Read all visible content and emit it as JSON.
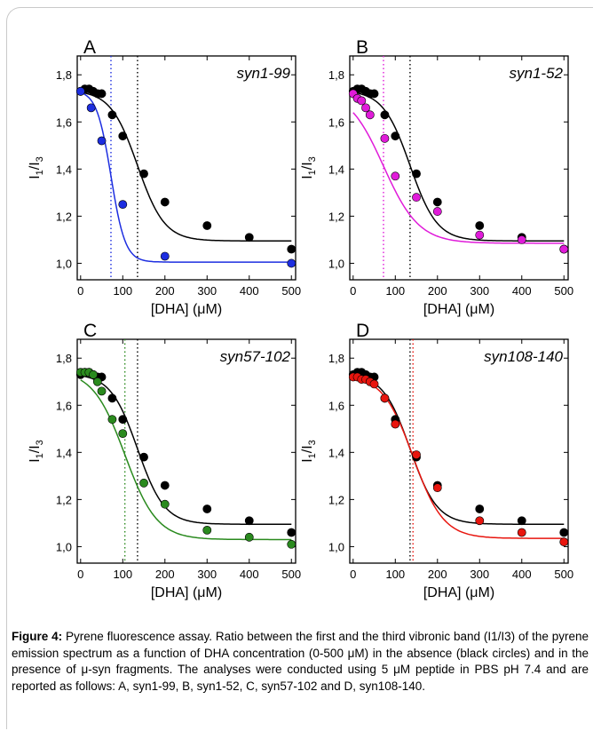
{
  "chart_data": [
    {
      "type": "scatter",
      "panel_label": "A",
      "annotation": "syn1-99",
      "xlabel": "[DHA] (μM)",
      "ylabel": "I1/I3",
      "xlim": [
        -8,
        510
      ],
      "ylim": [
        0.93,
        1.88
      ],
      "xticks": [
        "0",
        "100",
        "200",
        "300",
        "400",
        "500"
      ],
      "yticks": [
        "1,0",
        "1,2",
        "1,4",
        "1,6",
        "1,8"
      ],
      "series": [
        {
          "color": "#000000",
          "x": [
            0,
            10,
            20,
            30,
            40,
            50,
            75,
            100,
            150,
            200,
            300,
            400,
            500
          ],
          "y": [
            1.73,
            1.74,
            1.74,
            1.73,
            1.72,
            1.72,
            1.63,
            1.54,
            1.38,
            1.26,
            1.16,
            1.11,
            1.06
          ],
          "fit_top": 1.735,
          "fit_bottom": 1.095,
          "fit_mid": 135,
          "fit_width": 32,
          "vline": 135
        },
        {
          "color": "#1d2ee0",
          "x": [
            0,
            25,
            50,
            100,
            200,
            500
          ],
          "y": [
            1.73,
            1.66,
            1.52,
            1.25,
            1.03,
            1.0
          ],
          "fit_top": 1.735,
          "fit_bottom": 1.005,
          "fit_mid": 72,
          "fit_width": 17,
          "vline": 72
        }
      ]
    },
    {
      "type": "scatter",
      "panel_label": "B",
      "annotation": "syn1-52",
      "xlabel": "[DHA] (μM)",
      "ylabel": "I1/I3",
      "xlim": [
        -8,
        510
      ],
      "ylim": [
        0.93,
        1.88
      ],
      "xticks": [
        "0",
        "100",
        "200",
        "300",
        "400",
        "500"
      ],
      "yticks": [
        "1,0",
        "1,2",
        "1,4",
        "1,6",
        "1,8"
      ],
      "series": [
        {
          "color": "#000000",
          "x": [
            0,
            10,
            20,
            30,
            40,
            50,
            75,
            100,
            150,
            200,
            300,
            400,
            500
          ],
          "y": [
            1.73,
            1.74,
            1.74,
            1.73,
            1.72,
            1.72,
            1.63,
            1.54,
            1.38,
            1.26,
            1.16,
            1.11,
            1.06
          ],
          "fit_top": 1.735,
          "fit_bottom": 1.095,
          "fit_mid": 135,
          "fit_width": 32,
          "vline": 135
        },
        {
          "color": "#e01bd9",
          "x": [
            0,
            10,
            20,
            30,
            40,
            75,
            100,
            150,
            200,
            300,
            400,
            500
          ],
          "y": [
            1.72,
            1.7,
            1.69,
            1.66,
            1.63,
            1.53,
            1.37,
            1.28,
            1.22,
            1.12,
            1.1,
            1.06
          ],
          "fit_top": 1.74,
          "fit_bottom": 1.085,
          "fit_mid": 72,
          "fit_width": 42,
          "vline": 72
        }
      ]
    },
    {
      "type": "scatter",
      "panel_label": "C",
      "annotation": "syn57-102",
      "xlabel": "[DHA] (μM)",
      "ylabel": "I1/I3",
      "xlim": [
        -8,
        510
      ],
      "ylim": [
        0.93,
        1.88
      ],
      "xticks": [
        "0",
        "100",
        "200",
        "300",
        "400",
        "500"
      ],
      "yticks": [
        "1,0",
        "1,2",
        "1,4",
        "1,6",
        "1,8"
      ],
      "series": [
        {
          "color": "#000000",
          "x": [
            0,
            10,
            20,
            30,
            40,
            50,
            75,
            100,
            150,
            200,
            300,
            400,
            500
          ],
          "y": [
            1.73,
            1.74,
            1.74,
            1.73,
            1.72,
            1.72,
            1.63,
            1.54,
            1.38,
            1.26,
            1.16,
            1.11,
            1.06
          ],
          "fit_top": 1.735,
          "fit_bottom": 1.095,
          "fit_mid": 135,
          "fit_width": 32,
          "vline": 135
        },
        {
          "color": "#2a8a1e",
          "x": [
            0,
            10,
            20,
            30,
            40,
            50,
            75,
            100,
            150,
            200,
            300,
            400,
            500
          ],
          "y": [
            1.74,
            1.74,
            1.74,
            1.73,
            1.7,
            1.66,
            1.54,
            1.48,
            1.27,
            1.18,
            1.07,
            1.04,
            1.01
          ],
          "fit_top": 1.75,
          "fit_bottom": 1.03,
          "fit_mid": 105,
          "fit_width": 38,
          "vline": 105
        }
      ]
    },
    {
      "type": "scatter",
      "panel_label": "D",
      "annotation": "syn108-140",
      "xlabel": "[DHA] (μM)",
      "ylabel": "I1/I3",
      "xlim": [
        -8,
        510
      ],
      "ylim": [
        0.93,
        1.88
      ],
      "xticks": [
        "0",
        "100",
        "200",
        "300",
        "400",
        "500"
      ],
      "yticks": [
        "1,0",
        "1,2",
        "1,4",
        "1,6",
        "1,8"
      ],
      "series": [
        {
          "color": "#000000",
          "x": [
            0,
            10,
            20,
            30,
            40,
            50,
            75,
            100,
            150,
            200,
            300,
            400,
            500
          ],
          "y": [
            1.73,
            1.74,
            1.74,
            1.73,
            1.72,
            1.72,
            1.63,
            1.54,
            1.38,
            1.26,
            1.16,
            1.11,
            1.06
          ],
          "fit_top": 1.735,
          "fit_bottom": 1.095,
          "fit_mid": 135,
          "fit_width": 32,
          "vline": 135
        },
        {
          "color": "#e8150e",
          "x": [
            0,
            10,
            20,
            30,
            40,
            50,
            75,
            100,
            150,
            200,
            300,
            400,
            500
          ],
          "y": [
            1.72,
            1.72,
            1.71,
            1.71,
            1.7,
            1.69,
            1.63,
            1.52,
            1.39,
            1.25,
            1.11,
            1.06,
            1.02
          ],
          "fit_top": 1.73,
          "fit_bottom": 1.035,
          "fit_mid": 142,
          "fit_width": 36,
          "vline": 142
        }
      ]
    }
  ],
  "caption": {
    "label": "Figure 4:",
    "text": "Pyrene fluorescence assay. Ratio between the first and the third vibronic band (I1/I3) of the pyrene emission spectrum as a function of DHA concentration (0-500 μM) in the absence (black circles) and in the presence of μ-syn fragments. The analyses were conducted using 5 μM peptide in PBS pH 7.4 and are reported as follows: A, syn1-99, B, syn1-52, C, syn57-102 and D, syn108-140."
  }
}
